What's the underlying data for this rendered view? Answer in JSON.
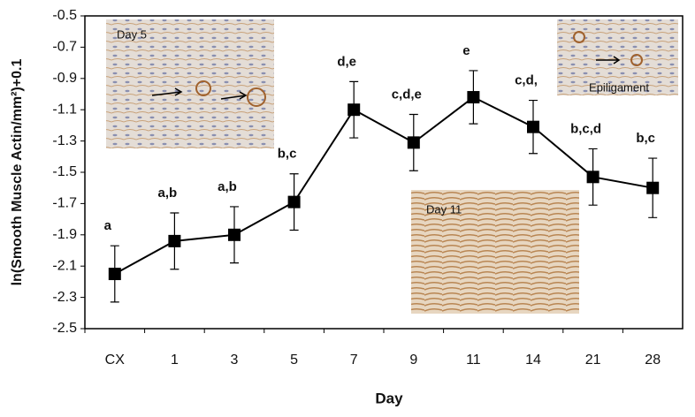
{
  "chart_data": {
    "type": "line",
    "x_label": "Day",
    "y_label": "ln(Smooth Muscle Actin/mm²)+0.1",
    "categories": [
      "CX",
      "1",
      "3",
      "5",
      "7",
      "9",
      "11",
      "14",
      "21",
      "28"
    ],
    "series": [
      {
        "color": "#000000",
        "values": [
          -2.15,
          -1.94,
          -1.9,
          -1.69,
          -1.1,
          -1.31,
          -1.02,
          -1.21,
          -1.53,
          -1.6
        ],
        "errors": [
          0.18,
          0.18,
          0.18,
          0.18,
          0.18,
          0.18,
          0.17,
          0.17,
          0.18,
          0.19
        ]
      }
    ],
    "annotations": [
      "a",
      "a,b",
      "a,b",
      "b,c",
      "d,e",
      "c,d,e",
      "e",
      "c,d,",
      "b,c,d",
      "b,c"
    ],
    "insets": [
      "Day 5",
      "Epiligament",
      "Day 11"
    ],
    "ylim": [
      -2.5,
      -0.5
    ],
    "yticks": [
      -2.5,
      -2.3,
      -2.1,
      -1.9,
      -1.7,
      -1.5,
      -1.3,
      -1.1,
      -0.9,
      -0.7,
      -0.5
    ]
  }
}
